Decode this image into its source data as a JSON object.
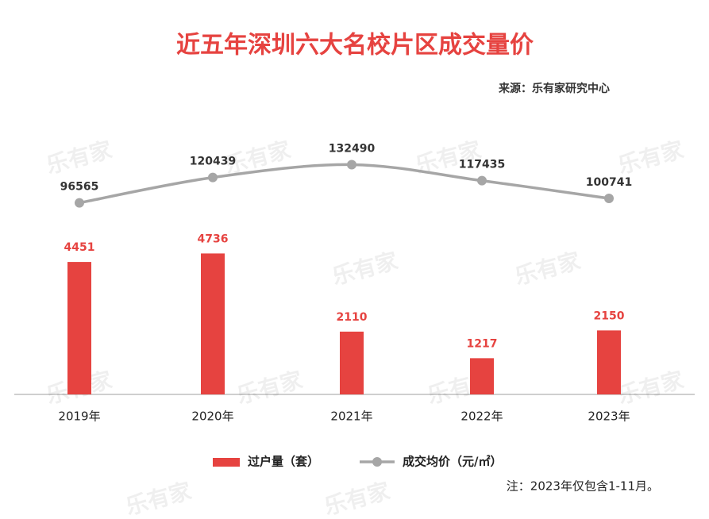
{
  "chart_data": {
    "type": "bar",
    "title": "近五年深圳六大名校片区成交量价",
    "source": "来源：乐有家研究中心",
    "note": "注：2023年仅包含1-11月。",
    "watermark": "乐有家",
    "categories": [
      "2019年",
      "2020年",
      "2021年",
      "2022年",
      "2023年"
    ],
    "series": [
      {
        "name": "过户量（套）",
        "type": "bar",
        "color": "#e64340",
        "values": [
          4451,
          4736,
          2110,
          1217,
          2150
        ]
      },
      {
        "name": "成交均价（元/㎡）",
        "type": "line",
        "axis": "y2",
        "color": "#a6a6a6",
        "values": [
          96565,
          120439,
          132490,
          117435,
          100741
        ]
      }
    ],
    "ylim": [
      0,
      8000
    ],
    "y2lim": [
      50000,
      150000
    ]
  }
}
